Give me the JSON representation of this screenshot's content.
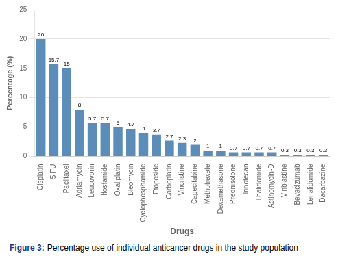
{
  "chart_data": {
    "type": "bar",
    "categories": [
      "Cisplatin",
      "5 FU",
      "Paclitaxel",
      "Adriamycin",
      "Leucovorin",
      "Ifosfamide",
      "Oxaliplatin",
      "Bleomycin",
      "Cyclophosphamide",
      "Etoposide",
      "Carboplatin",
      "Vincristine",
      "Capecitabine",
      "Methotrexate",
      "Dexamethasone",
      "Prednisolone",
      "Irinotecan",
      "Thalidomide",
      "Actinomycin-D",
      "Vinblastine",
      "Bevacizumab",
      "Lenalidomide",
      "Dacarbazine"
    ],
    "values": [
      20,
      15.7,
      15,
      8,
      5.7,
      5.7,
      5,
      4.7,
      4,
      3.7,
      2.7,
      2.3,
      2,
      1,
      1,
      0.7,
      0.7,
      0.7,
      0.7,
      0.3,
      0.3,
      0.3,
      0.3
    ],
    "color": "#5b8db8",
    "xlabel": "Drugs",
    "ylabel": "Percentage (%)",
    "ylim": [
      0,
      25
    ],
    "yticks": [
      0,
      5,
      10,
      15,
      20,
      25
    ],
    "grid": true,
    "data_labels": true,
    "caption": {
      "label": "Figure 3:",
      "color": "#1a3a8a",
      "text": "Percentage use of individual anticancer drugs in the study population"
    }
  }
}
